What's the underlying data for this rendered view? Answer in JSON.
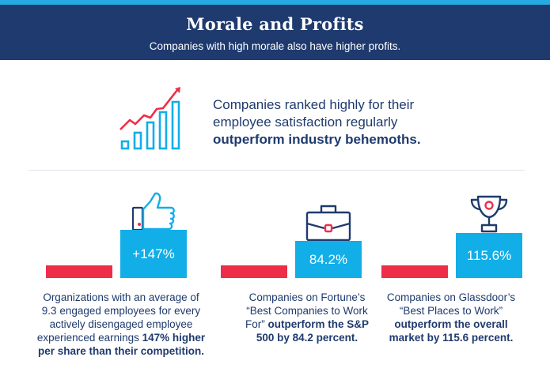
{
  "header": {
    "title": "Morale and Profits",
    "subtitle": "Companies with high morale also have higher profits."
  },
  "intro": {
    "line1": "Companies ranked highly for their",
    "line2": "employee satisfaction regularly",
    "line3_bold": "outperform industry behemoths."
  },
  "stats": [
    {
      "icon": "thumbs-up-icon",
      "value": "+147%",
      "desc_lines": [
        "Organizations with an average of",
        "9.3 engaged employees for every",
        "actively disengaged employee"
      ],
      "desc_line4_plain": "experienced earnings ",
      "desc_line4_bold": "147% higher",
      "desc_line5_bold": "per share than their competition."
    },
    {
      "icon": "briefcase-icon",
      "value": "84.2%",
      "desc_lines": [
        "Companies on Fortune’s",
        "“Best Companies to Work"
      ],
      "desc_line3_plain": "For” ",
      "desc_line3_bold": "outperform the S&P",
      "desc_line4_bold": "500 by 84.2 percent."
    },
    {
      "icon": "trophy-icon",
      "value": "115.6%",
      "desc_lines": [
        "Companies on Glassdoor’s",
        "“Best Places to Work”"
      ],
      "desc_line3_bold": "outperform the overall",
      "desc_line4_bold": "market by 115.6 percent."
    }
  ],
  "colors": {
    "navy": "#1f3a6e",
    "accent_blue": "#12aee8",
    "accent_red": "#ee2e49",
    "stripe": "#27a9e1"
  }
}
